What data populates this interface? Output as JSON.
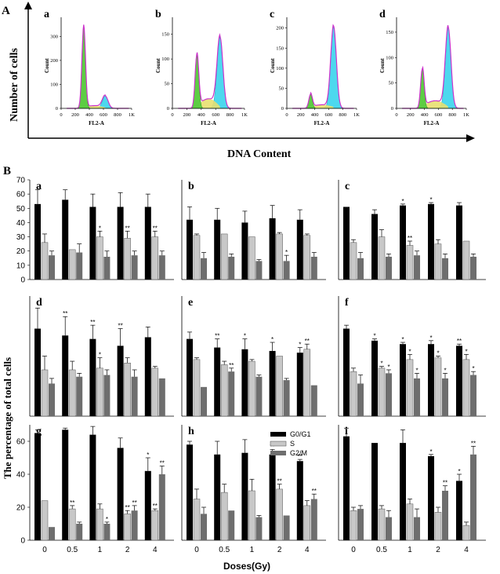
{
  "figure": {
    "panel_a_letter": "A",
    "panel_b_letter": "B",
    "y_title_a": "Number of cells",
    "x_title_a": "DNA Content",
    "y_title_b": "The percentage of total cells",
    "x_title_b": "Doses(Gy)",
    "legend": [
      "G0/G1",
      "S",
      "G2/M"
    ]
  },
  "colors": {
    "g0g1": "#000000",
    "s": "#c8c8c8",
    "g2m": "#6e6e6e",
    "green": "#5dcd44",
    "cyan": "#4dd8ee",
    "yellow": "#e8e070",
    "magenta": "#cc33cc"
  },
  "chart_data": [
    {
      "type": "area",
      "panel": "a",
      "title": "a",
      "xlabel": "FL2-A",
      "ylabel": "Count",
      "xticks": [
        "0",
        "200",
        "400",
        "600",
        "800",
        "1K"
      ],
      "yticks": [
        "0",
        "100",
        "200",
        "300"
      ],
      "xlim": [
        0,
        1000
      ],
      "ylim": [
        0,
        360
      ],
      "peaks": [
        {
          "phase": "G0/G1",
          "x": 320,
          "height": 345
        },
        {
          "phase": "G2/M",
          "x": 625,
          "height": 52
        }
      ]
    },
    {
      "type": "area",
      "panel": "b",
      "title": "b",
      "xlabel": "FL2-A",
      "ylabel": "Count",
      "xticks": [
        "0",
        "200",
        "400",
        "600",
        "800",
        "1K"
      ],
      "yticks": [
        "0",
        "50",
        "100",
        "150"
      ],
      "xlim": [
        0,
        1000
      ],
      "ylim": [
        0,
        175
      ],
      "peaks": [
        {
          "phase": "G0/G1",
          "x": 340,
          "height": 110
        },
        {
          "phase": "G2/M",
          "x": 660,
          "height": 145
        }
      ]
    },
    {
      "type": "area",
      "panel": "c",
      "title": "c",
      "xlabel": "FL2-A",
      "ylabel": "Count",
      "xticks": [
        "0",
        "200",
        "400",
        "600",
        "800",
        "1K"
      ],
      "yticks": [
        "0",
        "50",
        "100",
        "150",
        "200"
      ],
      "xlim": [
        0,
        1000
      ],
      "ylim": [
        0,
        215
      ],
      "peaks": [
        {
          "phase": "G0/G1",
          "x": 340,
          "height": 35
        },
        {
          "phase": "G2/M",
          "x": 670,
          "height": 205
        }
      ]
    },
    {
      "type": "area",
      "panel": "d",
      "title": "d",
      "xlabel": "FL2-A",
      "ylabel": "Count",
      "xticks": [
        "0",
        "200",
        "400",
        "600",
        "800",
        "1K"
      ],
      "yticks": [
        "0",
        "50",
        "100",
        "150"
      ],
      "xlim": [
        0,
        1000
      ],
      "ylim": [
        0,
        170
      ],
      "peaks": [
        {
          "phase": "G0/G1",
          "x": 370,
          "height": 78
        },
        {
          "phase": "G2/M",
          "x": 740,
          "height": 160
        }
      ]
    },
    {
      "type": "bar",
      "panel": "a",
      "title": "a",
      "categories": [
        "0",
        "0.5",
        "1",
        "2",
        "4"
      ],
      "ylim": [
        0,
        70
      ],
      "yticks": [
        0,
        10,
        20,
        30,
        40,
        50,
        60,
        70
      ],
      "series": [
        {
          "name": "G0/G1",
          "values": [
            53,
            56,
            51,
            51,
            51
          ],
          "errors": [
            10,
            7,
            9,
            10,
            9
          ],
          "marks": [
            "",
            "",
            "",
            "",
            ""
          ]
        },
        {
          "name": "S",
          "values": [
            26,
            21,
            30,
            29,
            30
          ],
          "errors": [
            6,
            0,
            4,
            5,
            4
          ],
          "marks": [
            "",
            "",
            "*",
            "**",
            "**"
          ]
        },
        {
          "name": "G2/M",
          "values": [
            17,
            19,
            16,
            17,
            17
          ],
          "errors": [
            3,
            6,
            4,
            3,
            3
          ],
          "marks": [
            "",
            "",
            "",
            "",
            ""
          ]
        }
      ]
    },
    {
      "type": "bar",
      "panel": "b",
      "title": "b",
      "categories": [
        "0",
        "0.5",
        "1",
        "2",
        "4"
      ],
      "ylim": [
        0,
        70
      ],
      "series": [
        {
          "name": "G0/G1",
          "values": [
            42,
            42,
            40,
            43,
            42
          ],
          "errors": [
            9,
            8,
            8,
            9,
            7
          ],
          "marks": [
            "",
            "",
            "",
            "",
            ""
          ]
        },
        {
          "name": "S",
          "values": [
            31,
            32,
            30,
            32,
            31
          ],
          "errors": [
            1,
            0,
            0,
            1,
            1
          ],
          "marks": [
            "",
            "",
            "",
            "",
            ""
          ]
        },
        {
          "name": "G2/M",
          "values": [
            15,
            16,
            13,
            13,
            16
          ],
          "errors": [
            4,
            2,
            1,
            4,
            3
          ],
          "marks": [
            "",
            "",
            "",
            "*",
            ""
          ]
        }
      ]
    },
    {
      "type": "bar",
      "panel": "c",
      "title": "c",
      "categories": [
        "0",
        "0.5",
        "1",
        "2",
        "4"
      ],
      "ylim": [
        0,
        70
      ],
      "series": [
        {
          "name": "G0/G1",
          "values": [
            51,
            46,
            52,
            53,
            52
          ],
          "errors": [
            0,
            3,
            1,
            1,
            2
          ],
          "marks": [
            "",
            "",
            "*",
            "*",
            ""
          ]
        },
        {
          "name": "S",
          "values": [
            26,
            30,
            24,
            25,
            27
          ],
          "errors": [
            2,
            5,
            3,
            3,
            0
          ],
          "marks": [
            "",
            "",
            "**",
            "",
            ""
          ]
        },
        {
          "name": "G2/M",
          "values": [
            15,
            16,
            17,
            15,
            16
          ],
          "errors": [
            4,
            2,
            3,
            3,
            2
          ],
          "marks": [
            "",
            "",
            "",
            "",
            ""
          ]
        }
      ]
    },
    {
      "type": "bar",
      "panel": "d",
      "title": "d",
      "categories": [
        "0",
        "0.5",
        "1",
        "2",
        "4"
      ],
      "ylim": [
        0,
        70
      ],
      "series": [
        {
          "name": "G0/G1",
          "values": [
            51,
            47,
            45,
            41,
            46
          ],
          "errors": [
            12,
            11,
            8,
            10,
            6
          ],
          "marks": [
            "",
            "**",
            "**",
            "**",
            ""
          ]
        },
        {
          "name": "S",
          "values": [
            27,
            27,
            28,
            31,
            28
          ],
          "errors": [
            8,
            5,
            6,
            3,
            1
          ],
          "marks": [
            "",
            "",
            "*",
            "",
            ""
          ]
        },
        {
          "name": "G2/M",
          "values": [
            19,
            23,
            24,
            23,
            22
          ],
          "errors": [
            3,
            2,
            3,
            4,
            0
          ],
          "marks": [
            "",
            "",
            "",
            "",
            ""
          ]
        }
      ]
    },
    {
      "type": "bar",
      "panel": "e",
      "title": "e",
      "categories": [
        "0",
        "0.5",
        "1",
        "2",
        "4"
      ],
      "ylim": [
        0,
        70
      ],
      "series": [
        {
          "name": "G0/G1",
          "values": [
            45,
            40,
            39,
            38,
            37
          ],
          "errors": [
            4,
            5,
            6,
            5,
            3
          ],
          "marks": [
            "",
            "**",
            "*",
            "*",
            "*"
          ]
        },
        {
          "name": "S",
          "values": [
            33,
            30,
            32,
            35,
            39
          ],
          "errors": [
            1,
            2,
            1,
            0,
            3
          ],
          "marks": [
            "",
            "",
            "",
            "",
            "**"
          ]
        },
        {
          "name": "G2/M",
          "values": [
            17,
            26,
            23,
            21,
            18
          ],
          "errors": [
            0,
            2,
            1,
            1,
            0
          ],
          "marks": [
            "",
            "**",
            "",
            "",
            ""
          ]
        }
      ]
    },
    {
      "type": "bar",
      "panel": "f",
      "title": "f",
      "categories": [
        "0",
        "0.5",
        "1",
        "2",
        "4"
      ],
      "ylim": [
        0,
        70
      ],
      "series": [
        {
          "name": "G0/G1",
          "values": [
            51,
            44,
            42,
            42,
            41
          ],
          "errors": [
            2,
            1,
            1,
            2,
            1
          ],
          "marks": [
            "",
            "*",
            "*",
            "*",
            "**"
          ]
        },
        {
          "name": "S",
          "values": [
            26,
            28,
            33,
            34,
            33
          ],
          "errors": [
            2,
            1,
            3,
            1,
            3
          ],
          "marks": [
            "",
            "*",
            "*",
            "*",
            "*"
          ]
        },
        {
          "name": "G2/M",
          "values": [
            19,
            25,
            22,
            22,
            24
          ],
          "errors": [
            5,
            2,
            3,
            3,
            2
          ],
          "marks": [
            "",
            "*",
            "*",
            "*",
            "*"
          ]
        }
      ]
    },
    {
      "type": "bar",
      "panel": "g",
      "title": "g",
      "categories": [
        "0",
        "0.5",
        "1",
        "2",
        "4"
      ],
      "ylim": [
        0,
        70
      ],
      "yticks": [
        0,
        20,
        40,
        60
      ],
      "series": [
        {
          "name": "G0/G1",
          "values": [
            65,
            67,
            64,
            56,
            42
          ],
          "errors": [
            2,
            1,
            5,
            6,
            8
          ],
          "marks": [
            "",
            "",
            "",
            "",
            "*"
          ]
        },
        {
          "name": "S",
          "values": [
            24,
            19,
            19,
            16,
            18
          ],
          "errors": [
            0,
            2,
            3,
            2,
            1
          ],
          "marks": [
            "",
            "**",
            "",
            "**",
            "**"
          ]
        },
        {
          "name": "G2/M",
          "values": [
            8,
            10,
            10,
            18,
            40
          ],
          "errors": [
            0,
            1,
            1,
            3,
            5
          ],
          "marks": [
            "",
            "",
            "*",
            "**",
            "**"
          ]
        }
      ]
    },
    {
      "type": "bar",
      "panel": "h",
      "title": "h",
      "categories": [
        "0",
        "0.5",
        "1",
        "2",
        "4"
      ],
      "ylim": [
        0,
        70
      ],
      "series": [
        {
          "name": "G0/G1",
          "values": [
            58,
            52,
            53,
            52,
            48
          ],
          "errors": [
            2,
            8,
            8,
            3,
            1
          ],
          "marks": [
            "",
            "",
            "",
            "**",
            "**"
          ]
        },
        {
          "name": "S",
          "values": [
            25,
            29,
            30,
            31,
            21
          ],
          "errors": [
            6,
            5,
            7,
            3,
            3
          ],
          "marks": [
            "",
            "",
            "",
            "**",
            ""
          ]
        },
        {
          "name": "G2/M",
          "values": [
            16,
            18,
            14,
            15,
            25
          ],
          "errors": [
            4,
            0,
            1,
            0,
            3
          ],
          "marks": [
            "",
            "",
            "",
            "",
            "**"
          ]
        }
      ]
    },
    {
      "type": "bar",
      "panel": "i",
      "title": "i",
      "categories": [
        "0",
        "0.5",
        "1",
        "2",
        "4"
      ],
      "ylim": [
        0,
        70
      ],
      "series": [
        {
          "name": "G0/G1",
          "values": [
            63,
            59,
            59,
            51,
            36
          ],
          "errors": [
            5,
            0,
            8,
            1,
            4
          ],
          "marks": [
            "",
            "",
            "",
            "*",
            "*"
          ]
        },
        {
          "name": "S",
          "values": [
            18,
            19,
            22,
            17,
            9
          ],
          "errors": [
            2,
            2,
            3,
            3,
            2
          ],
          "marks": [
            "",
            "",
            "",
            "",
            ""
          ]
        },
        {
          "name": "G2/M",
          "values": [
            19,
            14,
            14,
            30,
            52
          ],
          "errors": [
            2,
            4,
            5,
            3,
            5
          ],
          "marks": [
            "",
            "",
            "",
            "**",
            "**"
          ]
        }
      ]
    }
  ]
}
